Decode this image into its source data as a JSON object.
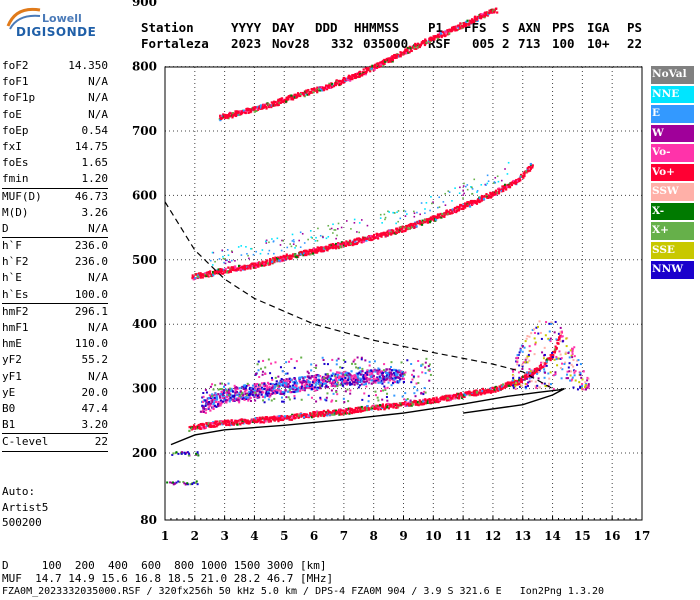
{
  "logo": {
    "top": "Lowell",
    "bottom": "DIGISONDE"
  },
  "header": {
    "labels": [
      "Station",
      "YYYY",
      "DAY",
      "DDD",
      "HHMMSS",
      "P1",
      "FFS",
      "S",
      "AXN",
      "PPS",
      "IGA",
      "PS"
    ],
    "values": [
      "Fortaleza",
      "2023",
      "Nov28",
      "332",
      "035000",
      "RSF",
      "005",
      "2",
      "713",
      "100",
      "10+",
      "22"
    ]
  },
  "params": [
    {
      "name": "foF2",
      "value": "14.350"
    },
    {
      "name": "foF1",
      "value": "N/A"
    },
    {
      "name": "foF1p",
      "value": "N/A"
    },
    {
      "name": "foE",
      "value": "N/A"
    },
    {
      "name": "foEp",
      "value": "0.54"
    },
    {
      "name": "fxI",
      "value": "14.75"
    },
    {
      "name": "foEs",
      "value": "1.65"
    },
    {
      "name": "fmin",
      "value": "1.20"
    },
    {
      "name": "MUF(D)",
      "value": "46.73",
      "sep": true
    },
    {
      "name": "M(D)",
      "value": "3.26"
    },
    {
      "name": "D",
      "value": "N/A"
    },
    {
      "name": "h`F",
      "value": "236.0",
      "sep": true
    },
    {
      "name": "h`F2",
      "value": "236.0"
    },
    {
      "name": "h`E",
      "value": "N/A"
    },
    {
      "name": "h`Es",
      "value": "100.0"
    },
    {
      "name": "hmF2",
      "value": "296.1",
      "sep": true
    },
    {
      "name": "hmF1",
      "value": "N/A"
    },
    {
      "name": "hmE",
      "value": "110.0"
    },
    {
      "name": "yF2",
      "value": "55.2"
    },
    {
      "name": "yF1",
      "value": "N/A"
    },
    {
      "name": "yE",
      "value": "20.0"
    },
    {
      "name": "B0",
      "value": "47.4"
    },
    {
      "name": "B1",
      "value": "3.20"
    },
    {
      "name": "C-level",
      "value": "22",
      "sep": true
    }
  ],
  "auto": {
    "line1": "Auto:",
    "line2": "Artist5",
    "line3": "500200"
  },
  "legend": [
    {
      "label": "NoVal",
      "color": "#808080"
    },
    {
      "label": "NNE",
      "color": "#00e5ff"
    },
    {
      "label": "E",
      "color": "#3399ff"
    },
    {
      "label": "W",
      "color": "#a0009a"
    },
    {
      "label": "Vo-",
      "color": "#ff33aa"
    },
    {
      "label": "Vo+",
      "color": "#ff0033"
    },
    {
      "label": "SSW",
      "color": "#ffb0a8"
    },
    {
      "label": "X-",
      "color": "#007a00"
    },
    {
      "label": "X+",
      "color": "#66b04a"
    },
    {
      "label": "SSE",
      "color": "#c8c800"
    },
    {
      "label": "NNW",
      "color": "#1a00cc"
    }
  ],
  "footer": {
    "line1": "D     100  200  400  600  800 1000 1500 3000 [km]",
    "line2": "MUF  14.7 14.9 15.6 16.8 18.5 21.0 28.2 46.7 [MHz]",
    "line3": "FZA0M_2023332035000.RSF / 320fx256h 50 kHz 5.0 km / DPS-4 FZA0M 904 / 3.9 S 321.6 E   Ion2Png 1.3.20"
  },
  "chart_data": {
    "type": "scatter",
    "xlim": [
      1,
      17
    ],
    "ylim": [
      80,
      900
    ],
    "x_ticks": [
      "1",
      "2",
      "3",
      "4",
      "5",
      "6",
      "7",
      "8",
      "9",
      "10",
      "11",
      "12",
      "13",
      "14",
      "15",
      "16",
      "17"
    ],
    "y_ticks": [
      "80",
      "200",
      "300",
      "400",
      "500",
      "600",
      "700",
      "800",
      "900"
    ],
    "grid": true,
    "series": [
      {
        "name": "Vo+",
        "values": [
          [
            1.8,
            240
          ],
          [
            2.5,
            246
          ],
          [
            3,
            248
          ],
          [
            4,
            252
          ],
          [
            5,
            256
          ],
          [
            6,
            262
          ],
          [
            7,
            266
          ],
          [
            8,
            272
          ],
          [
            9,
            277
          ],
          [
            10,
            283
          ],
          [
            11,
            292
          ],
          [
            12,
            300
          ],
          [
            12.8,
            312
          ],
          [
            13.5,
            332
          ],
          [
            14,
            355
          ],
          [
            14.3,
            392
          ]
        ]
      },
      {
        "name": "Vo+",
        "values": [
          [
            1.9,
            475
          ],
          [
            2.5,
            480
          ],
          [
            3,
            485
          ],
          [
            4,
            493
          ],
          [
            5,
            505
          ],
          [
            6,
            516
          ],
          [
            7,
            526
          ],
          [
            8,
            537
          ],
          [
            9,
            550
          ],
          [
            10,
            566
          ],
          [
            11,
            585
          ],
          [
            12,
            604
          ],
          [
            12.8,
            625
          ],
          [
            13.3,
            650
          ]
        ]
      },
      {
        "name": "Vo+",
        "values": [
          [
            2.8,
            722
          ],
          [
            3.5,
            730
          ],
          [
            4.5,
            742
          ],
          [
            5.5,
            758
          ],
          [
            6.5,
            772
          ],
          [
            7.5,
            790
          ],
          [
            8.5,
            812
          ],
          [
            9.5,
            836
          ],
          [
            10.5,
            856
          ],
          [
            11.5,
            878
          ],
          [
            12.1,
            890
          ]
        ]
      },
      {
        "name": "W",
        "values": [
          [
            2.2,
            272
          ],
          [
            3,
            290
          ],
          [
            4,
            298
          ],
          [
            5,
            305
          ],
          [
            6,
            312
          ],
          [
            7,
            318
          ],
          [
            8,
            320
          ],
          [
            9,
            322
          ]
        ]
      }
    ],
    "profile": [
      [
        1.2,
        213
      ],
      [
        2,
        228
      ],
      [
        3,
        236
      ],
      [
        5,
        243
      ],
      [
        7,
        252
      ],
      [
        9,
        262
      ],
      [
        11,
        276
      ],
      [
        12.5,
        288
      ],
      [
        13.5,
        294
      ],
      [
        14.2,
        298
      ],
      [
        14.4,
        300
      ],
      [
        14,
        290
      ],
      [
        13,
        275
      ],
      [
        11,
        262
      ]
    ],
    "dashed_curve": [
      [
        1,
        590
      ],
      [
        2,
        515
      ],
      [
        3,
        470
      ],
      [
        4,
        440
      ],
      [
        6,
        400
      ],
      [
        8,
        375
      ],
      [
        10,
        356
      ],
      [
        12,
        338
      ],
      [
        13,
        326
      ],
      [
        14,
        300
      ]
    ],
    "left_echo": [
      [
        1.3,
        148
      ],
      [
        1.9,
        148
      ],
      [
        1.5,
        200
      ],
      [
        1.8,
        200
      ]
    ]
  }
}
